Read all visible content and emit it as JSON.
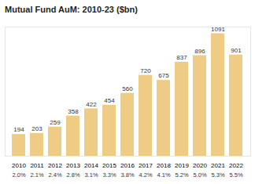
{
  "chart_data": {
    "type": "bar",
    "title": "Mutual Fund AuM: 2010-23 ($bn)",
    "categories": [
      "2010",
      "2011",
      "2012",
      "2013",
      "2014",
      "2015",
      "2016",
      "2017",
      "2018",
      "2019",
      "2020",
      "2021",
      "2022"
    ],
    "values": [
      194,
      203,
      259,
      358,
      422,
      454,
      560,
      720,
      675,
      837,
      896,
      1091,
      901
    ],
    "percent_values": [
      2.0,
      2.1,
      2.4,
      2.8,
      3.1,
      3.3,
      3.8,
      4.2,
      4.1,
      5.2,
      5.0,
      5.3,
      5.5
    ],
    "percent_labels": [
      "2.0%",
      "2.1%",
      "2.4%",
      "2.8%",
      "3.1%",
      "3.3%",
      "3.8%",
      "4.2%",
      "4.1%",
      "5.2%",
      "5.0%",
      "5.3%",
      "5.5%"
    ],
    "color": "#efcc86",
    "ylim": [
      0,
      1150
    ],
    "grid": false,
    "data_labels": true,
    "tick_labels": "x"
  }
}
